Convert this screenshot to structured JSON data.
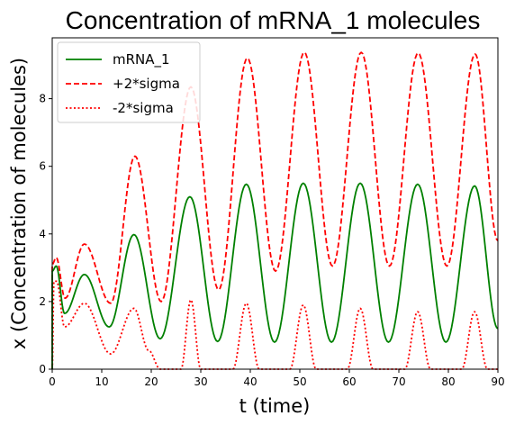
{
  "chart_data": {
    "type": "line",
    "title": "Concentration of mRNA_1 molecules",
    "xlabel": "t (time)",
    "ylabel": "x (Concentration of molecules)",
    "xlim": [
      0,
      90
    ],
    "ylim": [
      0,
      9.8
    ],
    "xticks": [
      0,
      10,
      20,
      30,
      40,
      50,
      60,
      70,
      80,
      90
    ],
    "yticks": [
      0,
      2,
      4,
      6,
      8
    ],
    "grid": false,
    "legend_position": "top-left",
    "model": {
      "mean_peak_times": [
        0.8,
        6.5,
        16.5,
        27.8,
        39.2,
        50.7,
        62.2,
        73.8,
        85.3
      ],
      "mean_peak_values": [
        3.05,
        2.8,
        3.98,
        5.1,
        5.47,
        5.5,
        5.5,
        5.47,
        5.42
      ],
      "mean_trough_times": [
        0,
        2.5,
        11.5,
        21.8,
        33.4,
        44.9,
        56.4,
        67.9,
        79.5,
        90
      ],
      "mean_trough_values": [
        2.9,
        1.65,
        1.25,
        0.9,
        0.82,
        0.8,
        0.8,
        0.8,
        0.8,
        1.2
      ],
      "upper_peak_times": [
        0.8,
        6.5,
        16.7,
        28.0,
        39.4,
        50.9,
        62.4,
        73.9,
        85.4
      ],
      "upper_peak_values": [
        3.3,
        3.7,
        6.3,
        8.35,
        9.2,
        9.37,
        9.37,
        9.35,
        9.32
      ],
      "upper_trough_times": [
        0,
        2.6,
        11.8,
        22.0,
        33.6,
        45.1,
        56.6,
        68.1,
        79.7,
        90
      ],
      "upper_trough_values": [
        3.1,
        2.1,
        1.95,
        2.0,
        2.35,
        2.9,
        3.05,
        3.05,
        3.05,
        3.8
      ],
      "lower_points": [
        [
          0,
          0
        ],
        [
          0.35,
          2.6
        ],
        [
          0.9,
          2.6
        ],
        [
          2.5,
          1.25
        ],
        [
          6.5,
          1.95
        ],
        [
          11.8,
          0.45
        ],
        [
          16.5,
          1.8
        ],
        [
          19.5,
          0.55
        ],
        [
          21.8,
          0
        ],
        [
          26,
          0
        ],
        [
          28,
          2.05
        ],
        [
          30,
          0
        ],
        [
          36.5,
          0
        ],
        [
          39.2,
          1.95
        ],
        [
          41.8,
          0
        ],
        [
          48,
          0
        ],
        [
          50.7,
          1.9
        ],
        [
          53.3,
          0
        ],
        [
          59.6,
          0
        ],
        [
          62.2,
          1.8
        ],
        [
          64.8,
          0
        ],
        [
          71.2,
          0
        ],
        [
          73.8,
          1.7
        ],
        [
          76.4,
          0
        ],
        [
          82.7,
          0
        ],
        [
          85.3,
          1.7
        ],
        [
          87.9,
          0
        ],
        [
          90,
          0
        ]
      ]
    },
    "series": [
      {
        "name": "mRNA_1",
        "color": "#008000",
        "style": "solid"
      },
      {
        "name": "+2*sigma",
        "color": "#ff0000",
        "style": "dashed"
      },
      {
        "name": "-2*sigma",
        "color": "#ff0000",
        "style": "dotted"
      }
    ]
  }
}
